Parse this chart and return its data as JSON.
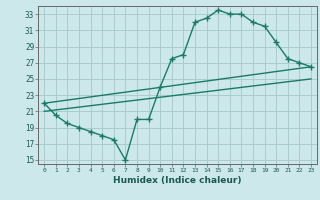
{
  "bg_color": "#cce8ea",
  "grid_color": "#aacccc",
  "line_color": "#1a7a6a",
  "xlabel": "Humidex (Indice chaleur)",
  "ylabel_ticks": [
    15,
    17,
    19,
    21,
    23,
    25,
    27,
    29,
    31,
    33
  ],
  "xlabel_ticks": [
    0,
    1,
    2,
    3,
    4,
    5,
    6,
    7,
    8,
    9,
    10,
    11,
    12,
    13,
    14,
    15,
    16,
    17,
    18,
    19,
    20,
    21,
    22,
    23
  ],
  "xlim": [
    -0.5,
    23.5
  ],
  "ylim": [
    14.5,
    34.0
  ],
  "line1_x": [
    0,
    1,
    2,
    3,
    4,
    5,
    6,
    7,
    8,
    9,
    10,
    11,
    12,
    13,
    14,
    15,
    16,
    17,
    18,
    19,
    20,
    21,
    22,
    23
  ],
  "line1_y": [
    22,
    20.5,
    19.5,
    19,
    18.5,
    18,
    17.5,
    15,
    20,
    20,
    24,
    27.5,
    28,
    32,
    32.5,
    33.5,
    33,
    33,
    32,
    31.5,
    29.5,
    27.5,
    27,
    26.5
  ],
  "line2_x": [
    0,
    23
  ],
  "line2_y": [
    22,
    26.5
  ],
  "line3_x": [
    0,
    23
  ],
  "line3_y": [
    21,
    25
  ]
}
